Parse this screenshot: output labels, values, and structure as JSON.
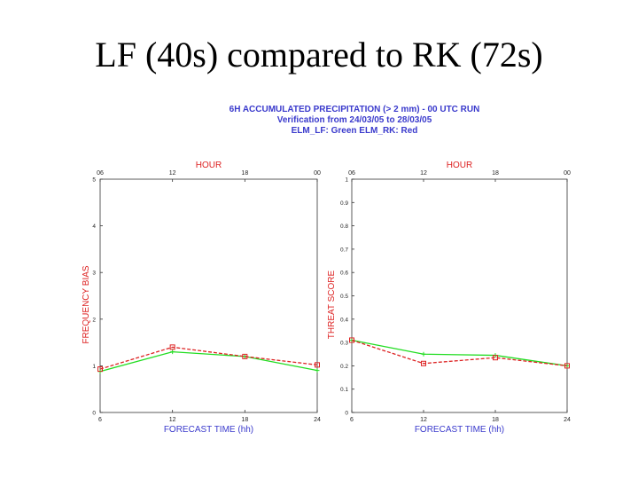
{
  "slide": {
    "title": "LF (40s) compared to RK (72s)"
  },
  "header": {
    "line1": "6H ACCUMULATED PRECIPITATION (> 2 mm) - 00 UTC RUN",
    "line2": "Verification from 24/03/05 to 28/03/05",
    "line3": "ELM_LF: Green   ELM_RK: Red"
  },
  "colors": {
    "lf": "#22dd22",
    "rk": "#dd2222",
    "axis_label": "#dd2222",
    "header": "#3a3acc",
    "xlabel": "#3a3acc"
  },
  "chart_data": [
    {
      "type": "line",
      "title": "HOUR",
      "xlabel": "FORECAST TIME (hh)",
      "ylabel": "FREQUENCY BIAS",
      "x": [
        6,
        12,
        18,
        24
      ],
      "x_ticks": [
        "6",
        "12",
        "18",
        "24"
      ],
      "top_ticks": [
        "06",
        "12",
        "18",
        "00"
      ],
      "ylim": [
        0,
        5
      ],
      "y_ticks": [
        "0",
        "1",
        "2",
        "3",
        "4",
        "5"
      ],
      "y_tick_values": [
        0,
        1,
        2,
        3,
        4,
        5
      ],
      "series": [
        {
          "name": "ELM_LF",
          "color": "#22dd22",
          "values": [
            0.88,
            1.3,
            1.2,
            0.9
          ]
        },
        {
          "name": "ELM_RK",
          "color": "#dd2222",
          "values": [
            0.93,
            1.4,
            1.2,
            1.02
          ]
        }
      ]
    },
    {
      "type": "line",
      "title": "HOUR",
      "xlabel": "FORECAST TIME (hh)",
      "ylabel": "THREAT SCORE",
      "x": [
        6,
        12,
        18,
        24
      ],
      "x_ticks": [
        "6",
        "12",
        "18",
        "24"
      ],
      "top_ticks": [
        "06",
        "12",
        "18",
        "00"
      ],
      "ylim": [
        0,
        1
      ],
      "y_ticks": [
        "0",
        "0.1",
        "0.2",
        "0.3",
        "0.4",
        "0.5",
        "0.6",
        "0.7",
        "0.8",
        "0.9",
        "1"
      ],
      "y_tick_values": [
        0,
        0.1,
        0.2,
        0.3,
        0.4,
        0.5,
        0.6,
        0.7,
        0.8,
        0.9,
        1
      ],
      "series": [
        {
          "name": "ELM_LF",
          "color": "#22dd22",
          "values": [
            0.31,
            0.25,
            0.245,
            0.2
          ]
        },
        {
          "name": "ELM_RK",
          "color": "#dd2222",
          "values": [
            0.31,
            0.21,
            0.235,
            0.2
          ]
        }
      ]
    }
  ]
}
